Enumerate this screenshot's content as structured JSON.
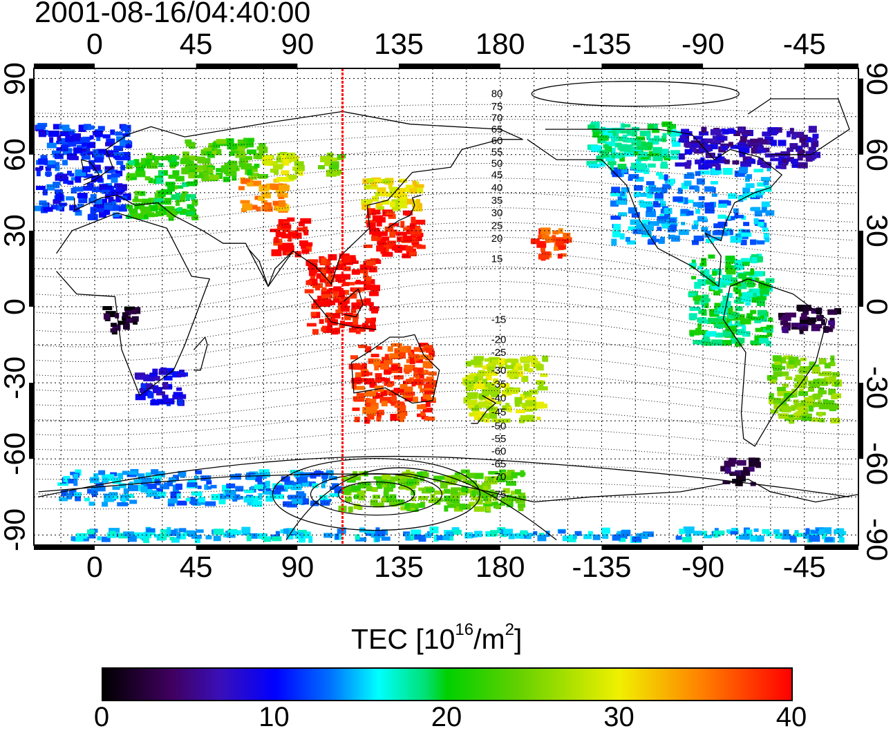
{
  "title": "2001-08-16/04:40:00",
  "axes": {
    "top_ticks": [
      "0",
      "45",
      "90",
      "135",
      "180",
      "-135",
      "-90",
      "-45"
    ],
    "bottom_ticks": [
      "0",
      "45",
      "90",
      "135",
      "180",
      "-135",
      "-90",
      "-45"
    ],
    "left_ticks": [
      "90",
      "60",
      "30",
      "0",
      "-30",
      "-60",
      "-90"
    ],
    "right_ticks": [
      "90",
      "60",
      "30",
      "0",
      "-30",
      "-60",
      "-90"
    ],
    "lon_range": [
      -27,
      339
    ],
    "lat_range": [
      -94,
      94
    ],
    "grid": true
  },
  "map": {
    "terminator_longitude": 110,
    "terminator_color": "#ff0000",
    "solar_zenith_labels": [
      "80",
      "75",
      "70",
      "65",
      "60",
      "55",
      "50",
      "45",
      "40",
      "35",
      "30",
      "25",
      "20",
      "15",
      "-15",
      "-20",
      "-25",
      "-30",
      "-35",
      "-40",
      "-45",
      "-50",
      "-55",
      "-60",
      "-65",
      "-70",
      "-75"
    ]
  },
  "colorbar": {
    "title_prefix": "TEC  [10",
    "title_exp1": "16",
    "title_mid": "/m",
    "title_exp2": "2",
    "title_suffix": "]",
    "min": 0,
    "max": 40,
    "ticks": [
      "0",
      "10",
      "20",
      "30",
      "40"
    ],
    "colors": [
      "#000000",
      "#40005f",
      "#0000ff",
      "#00ffff",
      "#00d000",
      "#f0f000",
      "#ff8000",
      "#ff0000"
    ]
  },
  "chart_data": {
    "type": "heatmap",
    "title": "2001-08-16/04:40:00",
    "value_label": "TEC [10^16/m^2]",
    "value_range": [
      0,
      40
    ],
    "regions": [
      {
        "lon": [
          -25,
          15
        ],
        "lat": [
          35,
          72
        ],
        "tec": 11
      },
      {
        "lon": [
          15,
          45
        ],
        "lat": [
          35,
          60
        ],
        "tec": 21
      },
      {
        "lon": [
          40,
          75
        ],
        "lat": [
          50,
          66
        ],
        "tec": 23
      },
      {
        "lon": [
          65,
          85
        ],
        "lat": [
          38,
          50
        ],
        "tec": 34
      },
      {
        "lon": [
          75,
          92
        ],
        "lat": [
          50,
          60
        ],
        "tec": 28
      },
      {
        "lon": [
          100,
          110
        ],
        "lat": [
          52,
          60
        ],
        "tec": 25
      },
      {
        "lon": [
          120,
          145
        ],
        "lat": [
          38,
          50
        ],
        "tec": 30
      },
      {
        "lon": [
          120,
          145
        ],
        "lat": [
          20,
          38
        ],
        "tec": 40
      },
      {
        "lon": [
          80,
          95
        ],
        "lat": [
          20,
          35
        ],
        "tec": 40
      },
      {
        "lon": [
          95,
          125
        ],
        "lat": [
          -10,
          20
        ],
        "tec": 40
      },
      {
        "lon": [
          115,
          150
        ],
        "lat": [
          -45,
          -15
        ],
        "tec": 38
      },
      {
        "lon": [
          165,
          200
        ],
        "lat": [
          -45,
          -20
        ],
        "tec": 28
      },
      {
        "lon": [
          195,
          210
        ],
        "lat": [
          18,
          30
        ],
        "tec": 37
      },
      {
        "lon": [
          230,
          300
        ],
        "lat": [
          25,
          55
        ],
        "tec": 14
      },
      {
        "lon": [
          220,
          260
        ],
        "lat": [
          55,
          72
        ],
        "tec": 18
      },
      {
        "lon": [
          260,
          320
        ],
        "lat": [
          55,
          70
        ],
        "tec": 7
      },
      {
        "lon": [
          265,
          300
        ],
        "lat": [
          -15,
          20
        ],
        "tec": 19
      },
      {
        "lon": [
          300,
          330
        ],
        "lat": [
          -45,
          -20
        ],
        "tec": 25
      },
      {
        "lon": [
          305,
          330
        ],
        "lat": [
          -10,
          0
        ],
        "tec": 3
      },
      {
        "lon": [
          280,
          295
        ],
        "lat": [
          -70,
          -60
        ],
        "tec": 3
      },
      {
        "lon": [
          20,
          40
        ],
        "lat": [
          -38,
          -25
        ],
        "tec": 9
      },
      {
        "lon": [
          5,
          20
        ],
        "lat": [
          -10,
          0
        ],
        "tec": 2
      },
      {
        "lon": [
          -15,
          110
        ],
        "lat": [
          -78,
          -65
        ],
        "tec": 14
      },
      {
        "lon": [
          -10,
          335
        ],
        "lat": [
          -92,
          -88
        ],
        "tec": 15
      },
      {
        "lon": [
          110,
          190
        ],
        "lat": [
          -80,
          -65
        ],
        "tec": 24
      }
    ]
  }
}
